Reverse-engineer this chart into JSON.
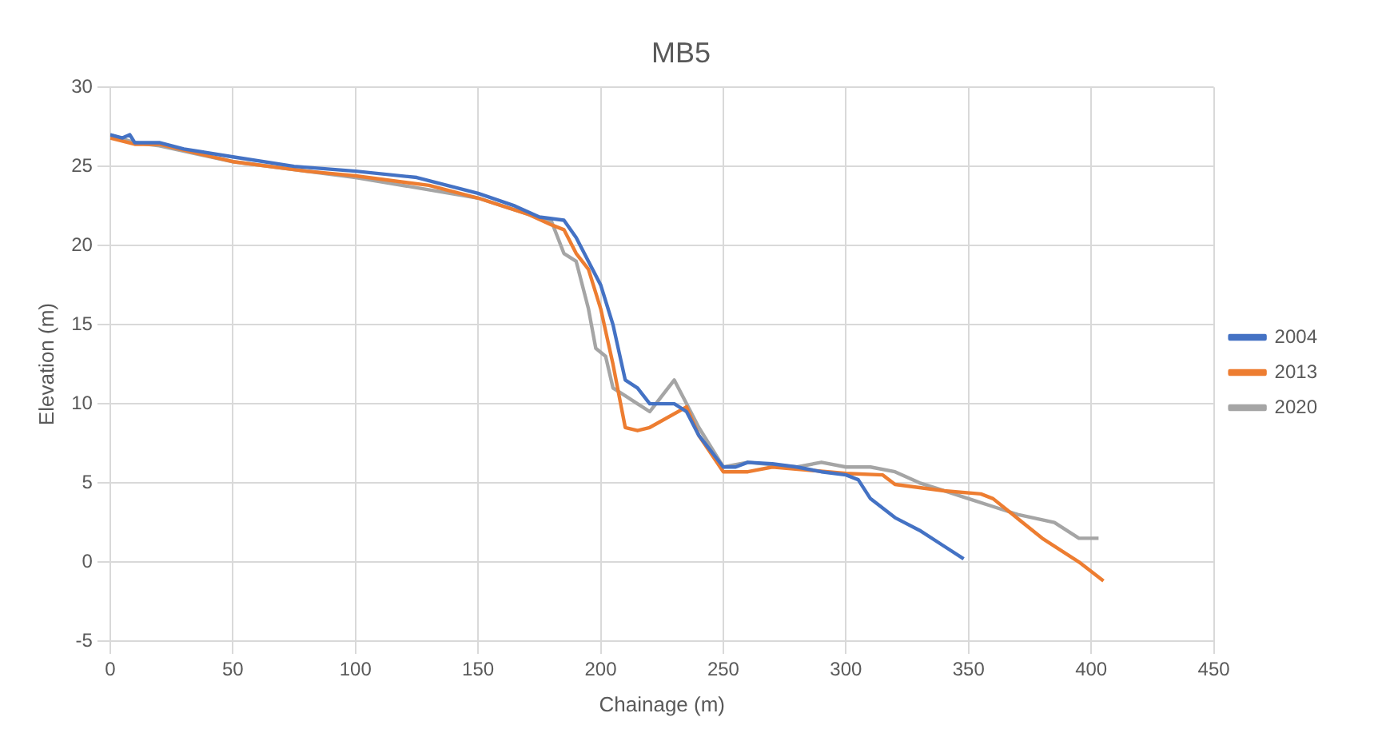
{
  "chart_data": {
    "type": "line",
    "title": "MB5",
    "xlabel": "Chainage (m)",
    "ylabel": "Elevation (m)",
    "xlim": [
      0,
      450
    ],
    "xticks": [
      0,
      50,
      100,
      150,
      200,
      250,
      300,
      350,
      400,
      450
    ],
    "ylim": [
      -5,
      30
    ],
    "yticks": [
      -5,
      0,
      5,
      10,
      15,
      20,
      25,
      30
    ],
    "grid": true,
    "legend": "right",
    "marker": "none",
    "line_style": "solid",
    "series": [
      {
        "name": "2004",
        "color": "#4472c4",
        "x": [
          0,
          5,
          8,
          10,
          20,
          30,
          50,
          75,
          100,
          125,
          150,
          165,
          175,
          185,
          190,
          195,
          200,
          205,
          210,
          215,
          220,
          225,
          230,
          235,
          240,
          250,
          255,
          260,
          270,
          280,
          290,
          300,
          305,
          310,
          320,
          330,
          340,
          348
        ],
        "values": [
          27,
          26.8,
          27,
          26.5,
          26.5,
          26.1,
          25.6,
          25,
          24.7,
          24.3,
          23.3,
          22.5,
          21.8,
          21.6,
          20.5,
          19,
          17.5,
          15,
          11.5,
          11,
          10,
          10,
          10,
          9.5,
          8,
          6,
          6,
          6.3,
          6.2,
          6,
          5.7,
          5.5,
          5.2,
          4,
          2.8,
          2,
          1,
          0.2
        ]
      },
      {
        "name": "2013",
        "color": "#ed7d31",
        "x": [
          0,
          10,
          20,
          50,
          80,
          100,
          130,
          150,
          170,
          180,
          185,
          190,
          195,
          200,
          205,
          210,
          215,
          220,
          235,
          240,
          250,
          260,
          270,
          300,
          315,
          320,
          340,
          355,
          360,
          380,
          395,
          405
        ],
        "values": [
          26.8,
          26.4,
          26.4,
          25.3,
          24.7,
          24.4,
          23.8,
          23,
          22,
          21.3,
          21,
          19.5,
          18.5,
          16,
          12.5,
          8.5,
          8.3,
          8.5,
          9.8,
          8,
          5.7,
          5.7,
          6,
          5.6,
          5.5,
          4.9,
          4.5,
          4.3,
          4,
          1.5,
          0,
          -1.2
        ]
      },
      {
        "name": "2020",
        "color": "#a5a5a5",
        "x": [
          0,
          10,
          20,
          50,
          100,
          150,
          180,
          185,
          190,
          195,
          198,
          202,
          205,
          210,
          215,
          220,
          225,
          230,
          235,
          240,
          250,
          260,
          280,
          290,
          300,
          310,
          320,
          330,
          340,
          350,
          360,
          370,
          385,
          395,
          403
        ],
        "values": [
          27,
          26.5,
          26.3,
          25.3,
          24.3,
          23,
          21.5,
          19.5,
          19,
          16,
          13.5,
          13,
          11,
          10.5,
          10,
          9.5,
          10.5,
          11.5,
          10,
          8.5,
          6,
          6.3,
          6,
          6.3,
          6,
          6,
          5.7,
          5,
          4.5,
          4,
          3.5,
          3,
          2.5,
          1.5,
          1.5
        ]
      }
    ]
  }
}
